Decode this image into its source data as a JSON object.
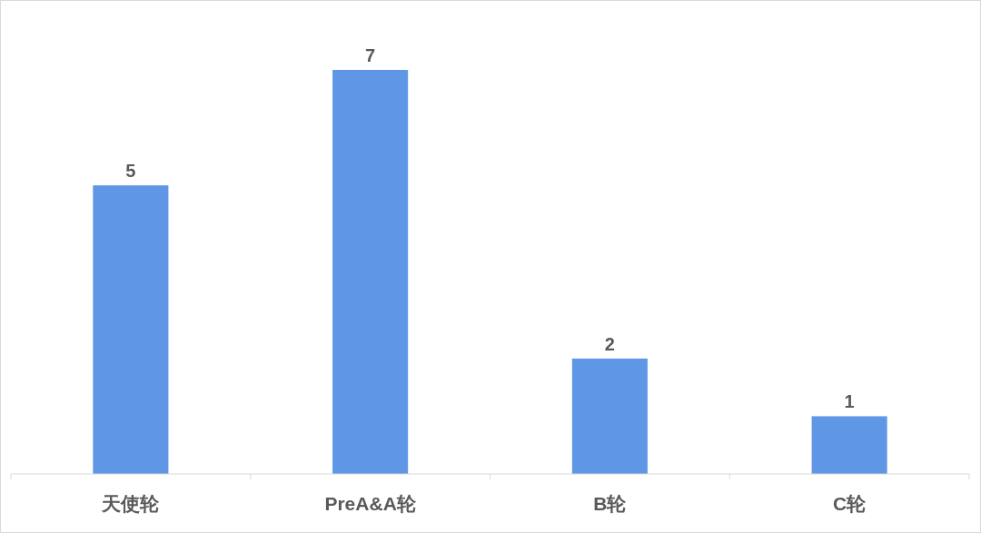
{
  "chart_data": {
    "type": "bar",
    "categories": [
      "天使轮",
      "PreA&A轮",
      "B轮",
      "C轮"
    ],
    "values": [
      5,
      7,
      2,
      1
    ],
    "color": "#5f97e6",
    "data_labels": true
  }
}
